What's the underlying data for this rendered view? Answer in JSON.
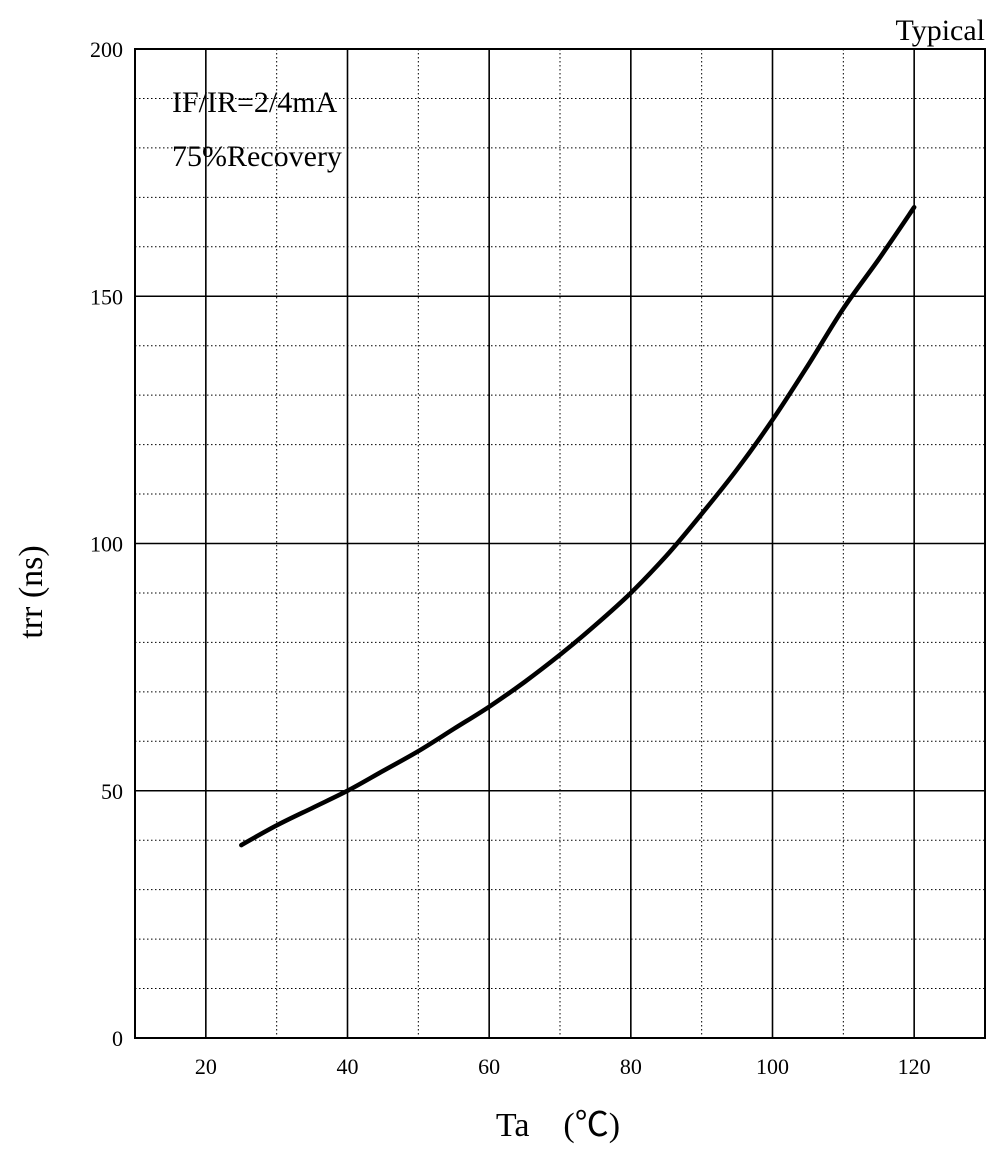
{
  "chart_data": {
    "type": "line",
    "title": "Typical",
    "annotations": [
      "IF/IR=2/4mA",
      "75%Recovery"
    ],
    "xlabel": "Ta　(℃)",
    "ylabel": "trr (ns)",
    "xlim": [
      10,
      130
    ],
    "ylim": [
      0,
      200
    ],
    "xticks": [
      20,
      40,
      60,
      80,
      100,
      120
    ],
    "yticks": [
      0,
      50,
      100,
      150,
      200
    ],
    "x_minor_step": 10,
    "y_minor_step": 10,
    "grid": true,
    "series": [
      {
        "x": [
          25,
          30,
          35,
          40,
          45,
          50,
          55,
          60,
          65,
          70,
          75,
          80,
          85,
          90,
          95,
          100,
          105,
          110,
          115,
          120
        ],
        "y": [
          39,
          43,
          46.5,
          50,
          54,
          58,
          62.5,
          67,
          72,
          77.5,
          83.5,
          90,
          97.5,
          106,
          115,
          125,
          136,
          147.5,
          157.5,
          168
        ]
      }
    ]
  }
}
